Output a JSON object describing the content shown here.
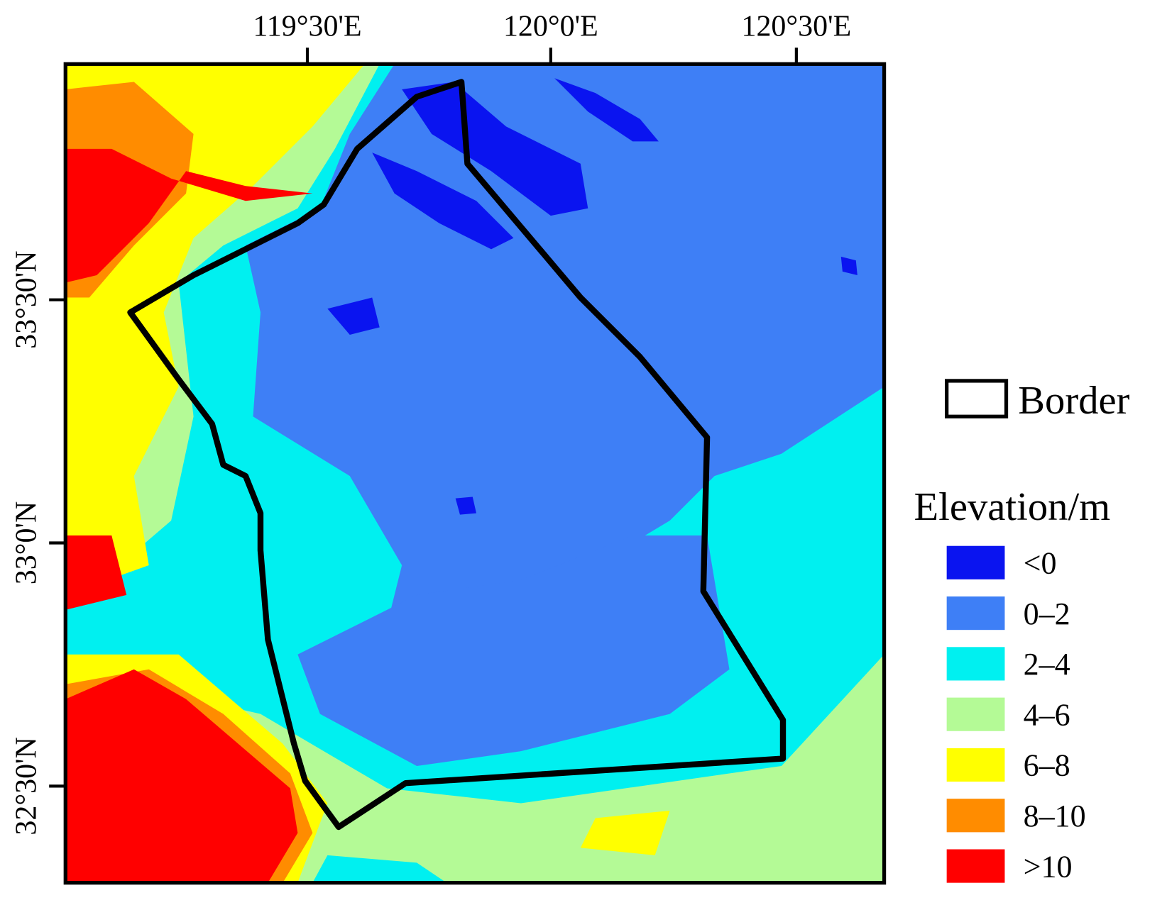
{
  "axes": {
    "top_labels": [
      "119°30'E",
      "120°0'E",
      "120°30'E"
    ],
    "left_labels": [
      "33°30'N",
      "33°0'N",
      "32°30'N"
    ]
  },
  "legend": {
    "border_label": "Border",
    "title": "Elevation/m",
    "items": [
      {
        "label": "<0",
        "color": "#0a14f0"
      },
      {
        "label": "0–2",
        "color": "#3e7ff6"
      },
      {
        "label": "2–4",
        "color": "#00f0f0"
      },
      {
        "label": "4–6",
        "color": "#b4fa96"
      },
      {
        "label": "6–8",
        "color": "#ffff00"
      },
      {
        "label": "8–10",
        "color": "#ff8c00"
      },
      {
        "label": ">10",
        "color": "#ff0000"
      }
    ]
  }
}
